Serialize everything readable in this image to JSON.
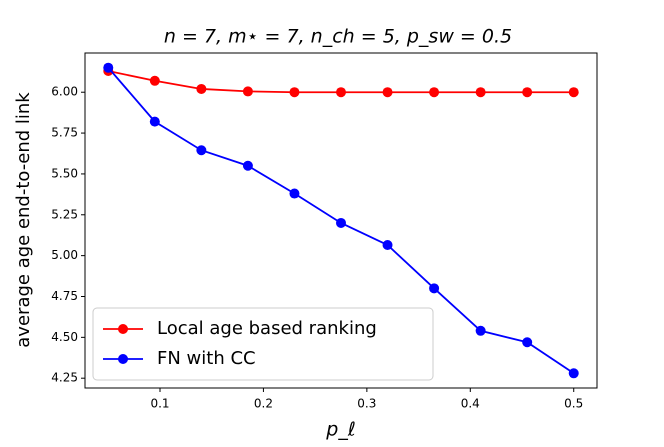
{
  "chart_data": {
    "type": "line",
    "title": "n = 7, m⋆ = 7, n_ch = 5, p_sw = 0.5",
    "x_label": "p_ℓ",
    "y_label": "average age end-to-end link",
    "x": [
      0.05,
      0.095,
      0.14,
      0.185,
      0.23,
      0.275,
      0.32,
      0.365,
      0.41,
      0.455,
      0.5
    ],
    "series": [
      {
        "name": "Local age based ranking",
        "color": "#ff0000",
        "values": [
          6.13,
          6.07,
          6.02,
          6.005,
          6.0,
          6.0,
          6.0,
          6.0,
          6.0,
          6.0,
          6.0
        ]
      },
      {
        "name": "FN with CC",
        "color": "#0000ff",
        "values": [
          6.15,
          5.82,
          5.645,
          5.55,
          5.38,
          5.2,
          5.065,
          4.8,
          4.54,
          4.47,
          4.28
        ]
      }
    ],
    "xlim": [
      0.0275,
      0.5225
    ],
    "xticks": [
      0.1,
      0.2,
      0.3,
      0.4,
      0.5
    ],
    "ylim": [
      4.19,
      6.24
    ],
    "yticks": [
      {
        "value": 4.25,
        "label": "4.25"
      },
      {
        "value": 4.5,
        "label": "4.50"
      },
      {
        "value": 4.75,
        "label": "4.75"
      },
      {
        "value": 5,
        "label": "5.00"
      },
      {
        "value": 5.25,
        "label": "5.25"
      },
      {
        "value": 5.5,
        "label": "5.50"
      },
      {
        "value": 5.75,
        "label": "5.75"
      },
      {
        "value": 6,
        "label": "6.00"
      }
    ],
    "legend": "lower left"
  }
}
